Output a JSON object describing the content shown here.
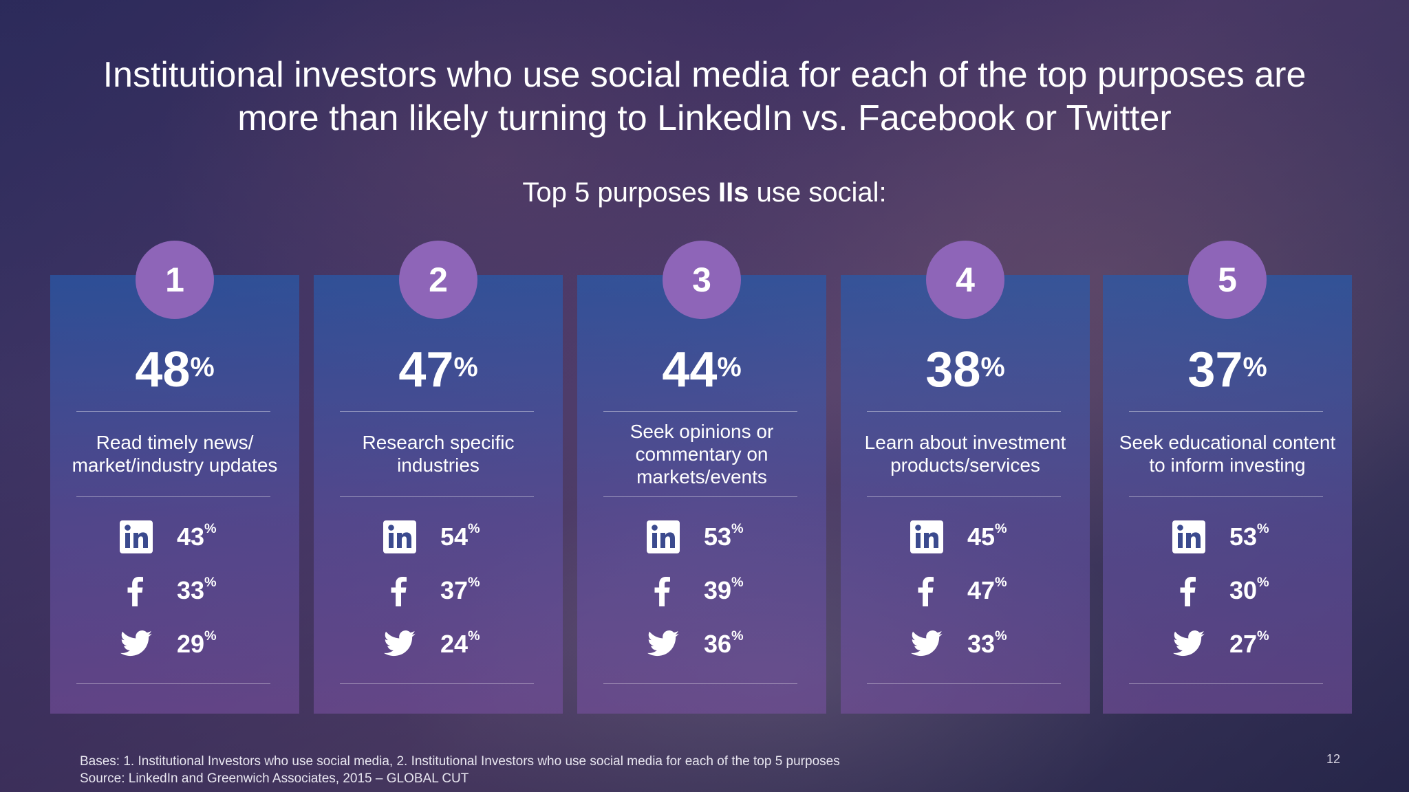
{
  "headline": {
    "line1": "Institutional investors who use social media for each of the top purposes are",
    "line2": "more than likely turning to LinkedIn vs. Facebook or Twitter"
  },
  "subtitle": {
    "before": "Top 5 purposes ",
    "bold": "IIs",
    "after": " use social:"
  },
  "colors": {
    "badge": "#8e65b8",
    "card_top": "#285aaa",
    "card_bottom": "#7850a0"
  },
  "cards": [
    {
      "rank": "1",
      "percent": "48",
      "percent_sign": "%",
      "purpose": "Read timely news/ market/industry updates",
      "linkedin": "43",
      "facebook": "33",
      "twitter": "29"
    },
    {
      "rank": "2",
      "percent": "47",
      "percent_sign": "%",
      "purpose": "Research specific industries",
      "linkedin": "54",
      "facebook": "37",
      "twitter": "24"
    },
    {
      "rank": "3",
      "percent": "44",
      "percent_sign": "%",
      "purpose": "Seek opinions or commentary on markets/events",
      "linkedin": "53",
      "facebook": "39",
      "twitter": "36"
    },
    {
      "rank": "4",
      "percent": "38",
      "percent_sign": "%",
      "purpose": "Learn about investment products/services",
      "linkedin": "45",
      "facebook": "47",
      "twitter": "33"
    },
    {
      "rank": "5",
      "percent": "37",
      "percent_sign": "%",
      "purpose": "Seek educational content to inform investing",
      "linkedin": "53",
      "facebook": "30",
      "twitter": "27"
    }
  ],
  "row_percent_sign": "%",
  "icons": {
    "linkedin": "linkedin-icon",
    "facebook": "facebook-icon",
    "twitter": "twitter-icon"
  },
  "footnote": {
    "bases": "Bases: 1. Institutional Investors who use social media, 2. Institutional Investors who use social media for each of the top 5 purposes",
    "source": "Source: LinkedIn and Greenwich Associates, 2015 – GLOBAL CUT"
  },
  "page_number": "12"
}
